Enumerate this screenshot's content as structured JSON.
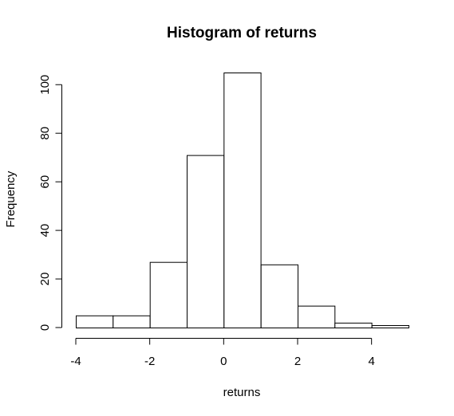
{
  "chart_data": {
    "type": "bar",
    "title": "Histogram of returns",
    "xlabel": "returns",
    "ylabel": "Frequency",
    "bins": [
      {
        "start": -4,
        "end": -3,
        "count": 5
      },
      {
        "start": -3,
        "end": -2,
        "count": 5
      },
      {
        "start": -2,
        "end": -1,
        "count": 27
      },
      {
        "start": -1,
        "end": 0,
        "count": 71
      },
      {
        "start": 0,
        "end": 1,
        "count": 105
      },
      {
        "start": 1,
        "end": 2,
        "count": 26
      },
      {
        "start": 2,
        "end": 3,
        "count": 9
      },
      {
        "start": 3,
        "end": 4,
        "count": 2
      },
      {
        "start": 4,
        "end": 5,
        "count": 1
      }
    ],
    "x_ticks": [
      -4,
      -2,
      0,
      2,
      4
    ],
    "y_ticks": [
      0,
      20,
      40,
      60,
      80,
      100
    ],
    "xlim": [
      -4,
      5
    ],
    "ylim": [
      0,
      105
    ],
    "grid": false
  }
}
